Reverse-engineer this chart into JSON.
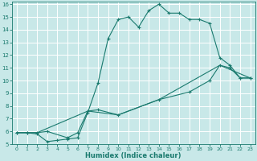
{
  "title": "",
  "xlabel": "Humidex (Indice chaleur)",
  "bg_color": "#c8e8e8",
  "line_color": "#1a7a6e",
  "grid_color": "#b0d8d8",
  "xlim": [
    -0.5,
    23.5
  ],
  "ylim": [
    5,
    16.2
  ],
  "xticks": [
    0,
    1,
    2,
    3,
    4,
    5,
    6,
    7,
    8,
    9,
    10,
    11,
    12,
    13,
    14,
    15,
    16,
    17,
    18,
    19,
    20,
    21,
    22,
    23
  ],
  "yticks": [
    5,
    6,
    7,
    8,
    9,
    10,
    11,
    12,
    13,
    14,
    15,
    16
  ],
  "line1_x": [
    0,
    1,
    2,
    3,
    4,
    5,
    6,
    7,
    8,
    9,
    10,
    11,
    12,
    13,
    14,
    15,
    16,
    17,
    18,
    19,
    20,
    21,
    22,
    23
  ],
  "line1_y": [
    5.9,
    5.9,
    5.8,
    5.2,
    5.3,
    5.4,
    5.5,
    7.5,
    9.8,
    13.3,
    14.8,
    15.0,
    14.2,
    15.5,
    16.0,
    15.3,
    15.3,
    14.8,
    14.8,
    14.5,
    11.8,
    11.2,
    10.2,
    10.2
  ],
  "line2_x": [
    0,
    1,
    2,
    3,
    5,
    6,
    7,
    8,
    10,
    14,
    17,
    19,
    20,
    21,
    22,
    23
  ],
  "line2_y": [
    5.9,
    5.9,
    5.9,
    6.0,
    5.5,
    5.9,
    7.6,
    7.7,
    7.3,
    8.5,
    9.1,
    10.0,
    11.2,
    11.0,
    10.2,
    10.2
  ],
  "line3_x": [
    0,
    2,
    7,
    10,
    14,
    20,
    23
  ],
  "line3_y": [
    5.9,
    5.9,
    7.6,
    7.3,
    8.5,
    11.2,
    10.2
  ]
}
